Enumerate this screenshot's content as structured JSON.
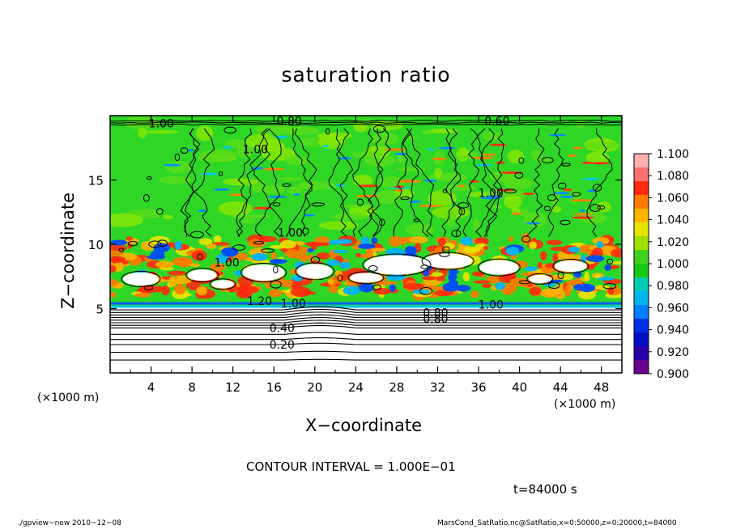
{
  "chart_data": {
    "type": "heatmap",
    "title": "saturation ratio",
    "xlabel": "X−coordinate",
    "ylabel": "Z−coordinate",
    "x_unit_left": "(×1000 m)",
    "x_unit_right": "(×1000 m)",
    "xlim": [
      0,
      50
    ],
    "ylim": [
      0,
      20
    ],
    "x_ticks": [
      4,
      8,
      12,
      16,
      20,
      24,
      28,
      32,
      36,
      40,
      44,
      48
    ],
    "x_tick_labels": [
      "4",
      "8",
      "12",
      "16",
      "20",
      "24",
      "28",
      "32",
      "36",
      "40",
      "44",
      "48"
    ],
    "y_ticks": [
      5,
      10,
      15
    ],
    "y_tick_labels": [
      "5",
      "10",
      "15"
    ],
    "colorbar": {
      "labels": [
        "1.100",
        "1.080",
        "1.060",
        "1.040",
        "1.020",
        "1.000",
        "0.980",
        "0.960",
        "0.940",
        "0.920",
        "0.900"
      ],
      "colors": [
        "#ffb0b0",
        "#ff7070",
        "#ff2a10",
        "#ff7a00",
        "#ffb400",
        "#e6e600",
        "#a0e000",
        "#3cd21e",
        "#18c818",
        "#00cdb4",
        "#00b4f0",
        "#0080ff",
        "#0030e6",
        "#0010c0",
        "#2a00a8",
        "#6a0090"
      ]
    },
    "contour_labels": [
      {
        "text": "1.00",
        "x": 5.0,
        "y": 19.4
      },
      {
        "text": "0.80",
        "x": 17.5,
        "y": 19.6
      },
      {
        "text": "0.60",
        "x": 37.8,
        "y": 19.6
      },
      {
        "text": "1.00",
        "x": 14.2,
        "y": 17.4
      },
      {
        "text": "1.00",
        "x": 37.2,
        "y": 14.0
      },
      {
        "text": "1.00",
        "x": 17.6,
        "y": 10.9
      },
      {
        "text": "1.00",
        "x": 11.4,
        "y": 8.6
      },
      {
        "text": "1.20",
        "x": 14.6,
        "y": 5.6
      },
      {
        "text": "1.00",
        "x": 17.9,
        "y": 5.4
      },
      {
        "text": "0.80",
        "x": 31.8,
        "y": 4.7
      },
      {
        "text": "0.80",
        "x": 31.8,
        "y": 4.2
      },
      {
        "text": "1.00",
        "x": 37.2,
        "y": 5.3
      },
      {
        "text": "0.40",
        "x": 16.8,
        "y": 3.5
      },
      {
        "text": "0.20",
        "x": 16.8,
        "y": 2.2
      }
    ],
    "contour_interval_text": "CONTOUR INTERVAL = 1.000E−01",
    "time_text": "t=84000 s"
  },
  "footer": {
    "left": "./gpview−new   2010−12−08",
    "right": "MarsCond_SatRatio.nc@SatRatio,x=0:50000,z=0:20000,t=84000"
  }
}
